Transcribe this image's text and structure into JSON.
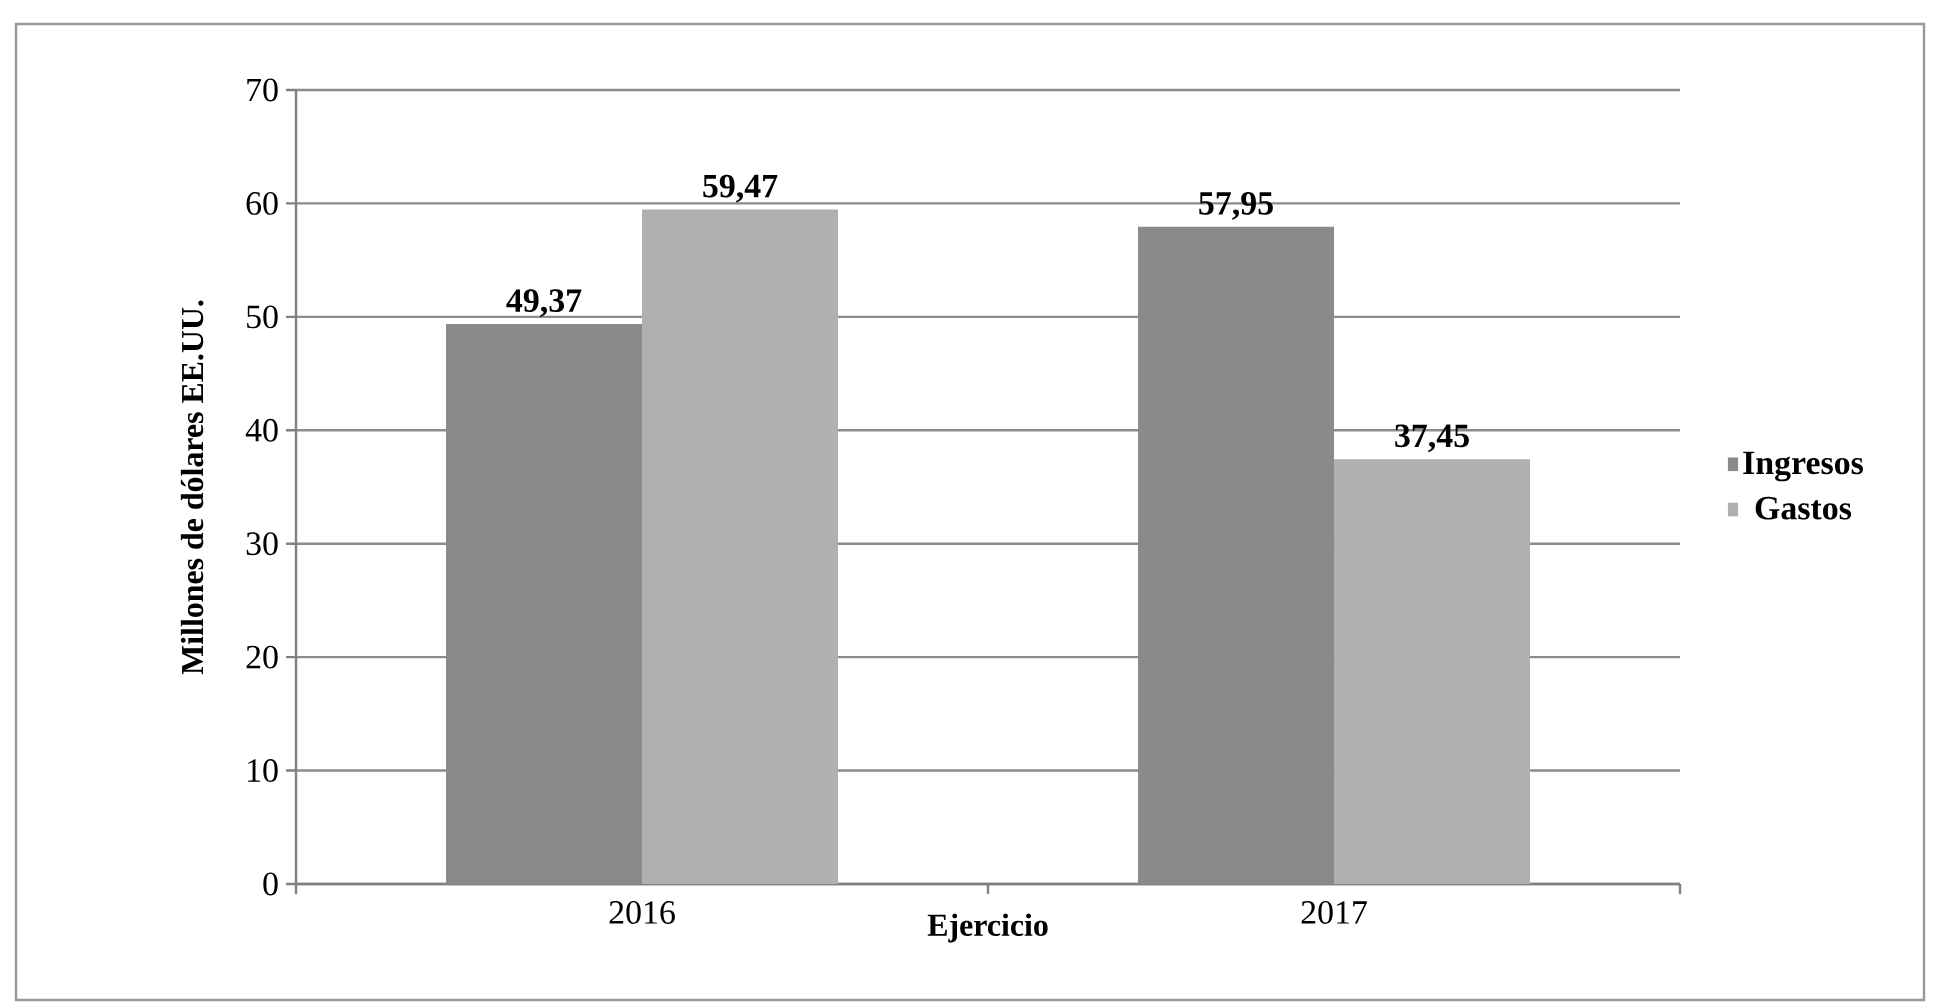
{
  "chart_data": {
    "type": "bar",
    "xlabel": "Ejercicio",
    "ylabel": "Millones de dólares EE.UU.",
    "categories": [
      "2016",
      "2017"
    ],
    "series": [
      {
        "name": "Ingresos",
        "color": "#8a8a8a",
        "values": [
          49.37,
          57.95
        ],
        "value_labels": [
          "49,37",
          "57,95"
        ]
      },
      {
        "name": "Gastos",
        "color": "#b0b0b0",
        "values": [
          59.47,
          37.45
        ],
        "value_labels": [
          "59,47",
          "37,45"
        ]
      }
    ],
    "ylim": [
      0,
      70
    ],
    "yticks": [
      0,
      10,
      20,
      30,
      40,
      50,
      60,
      70
    ],
    "grid": "y",
    "legend": "right"
  }
}
